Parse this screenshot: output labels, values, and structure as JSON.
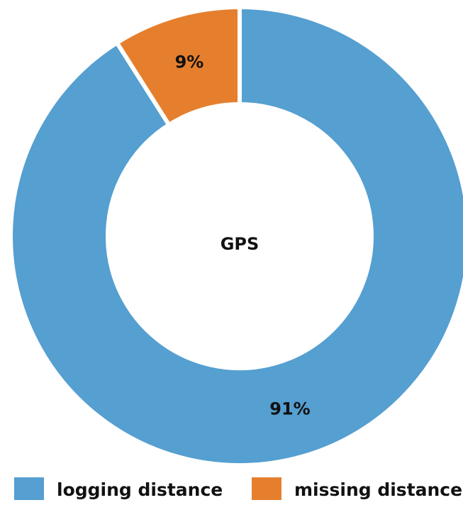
{
  "chart_data": {
    "type": "donut",
    "center_label": "GPS",
    "categories": [
      "logging distance",
      "missing distance"
    ],
    "values": [
      91,
      9
    ],
    "value_labels": [
      "91%",
      "9%"
    ],
    "colors": [
      "#559fd1",
      "#e57f2e"
    ],
    "legend": "bottom"
  }
}
